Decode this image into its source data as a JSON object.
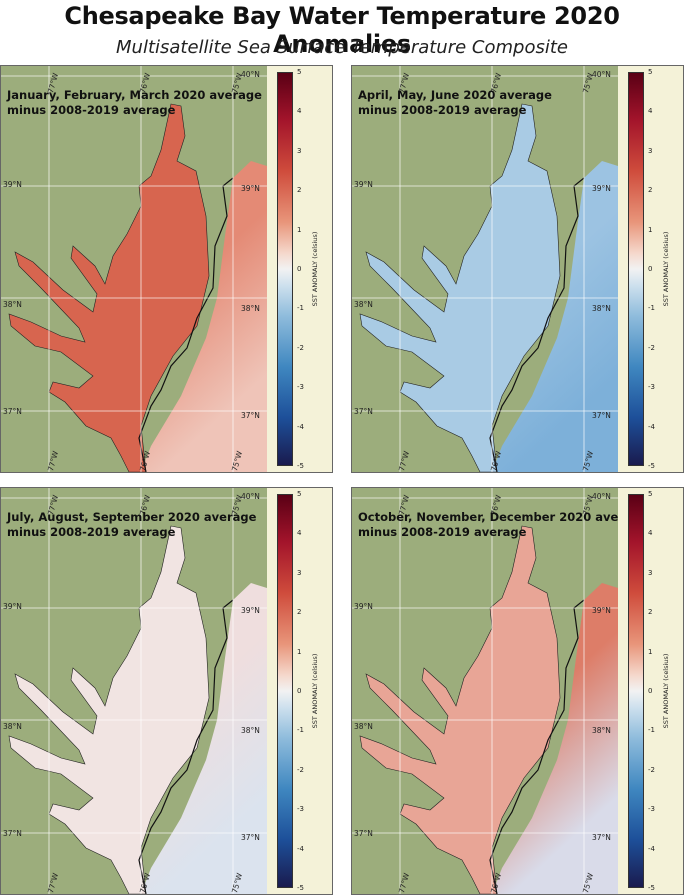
{
  "title": "Chesapeake Bay Water Temperature 2020 Anomalies",
  "subtitle": "Multisatellite Sea Surface Temperature Composite",
  "colorbar": {
    "label": "SST ANOMALY (celsius)",
    "ticks": [
      "5",
      "4",
      "3",
      "2",
      "1",
      "0",
      "-1",
      "-2",
      "-3",
      "-4",
      "-5"
    ]
  },
  "gridlines": {
    "lat_labels": [
      "40°N",
      "39°N",
      "38°N",
      "37°N"
    ],
    "lon_labels": [
      "77°W",
      "76°W",
      "75°W"
    ]
  },
  "colors": {
    "land": "#9cad7c",
    "warm_anomaly": "#d9705a",
    "cool_anomaly": "#a7c8e3",
    "neutral": "#ecdcd8",
    "colorbar_background": "#f4f2d8"
  },
  "panels": [
    {
      "line1": "January, February, March 2020 average",
      "line2": "minus 2008-2019 average",
      "anomaly": "warm"
    },
    {
      "line1": "April, May, June 2020 average",
      "line2": "minus 2008-2019 average",
      "anomaly": "cool"
    },
    {
      "line1": "July, August, September 2020 average",
      "line2": "minus 2008-2019 average",
      "anomaly": "neutral"
    },
    {
      "line1": "October, November, December 2020 average",
      "line2": "minus 2008-2019 average",
      "anomaly": "warm-light"
    }
  ]
}
